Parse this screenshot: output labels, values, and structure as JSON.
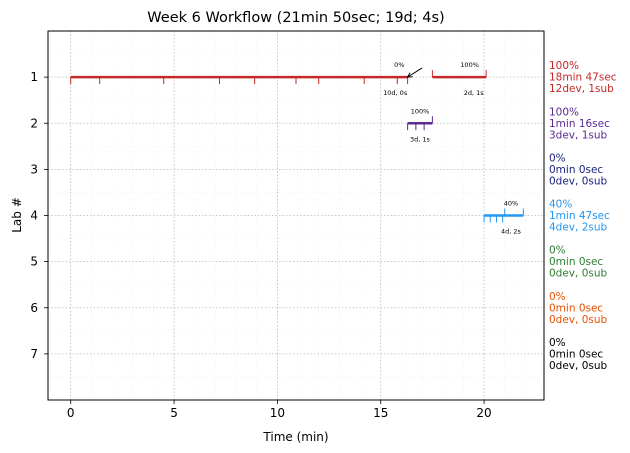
{
  "chart_data": {
    "type": "timeline",
    "title": "Week 6 Workflow (21min 50sec; 19d; 4s)",
    "xlabel": "Time (min)",
    "ylabel": "Lab #",
    "xlim": [
      -1.1,
      22.9
    ],
    "ylim": [
      8,
      0
    ],
    "xticks": [
      0,
      5,
      10,
      15,
      20
    ],
    "yticks": [
      1,
      2,
      3,
      4,
      5,
      6,
      7
    ],
    "grid": true,
    "labs": [
      {
        "lab": 1,
        "color": "#c62828",
        "segments": [
          [
            0,
            16.3
          ],
          [
            17.5,
            20.1
          ]
        ],
        "dev_ticks": [
          0,
          1.4,
          4.5,
          7.2,
          8.9,
          10.9,
          12.0,
          14.2,
          15.8,
          16.3
        ],
        "sub_ticks": [
          17.5,
          20.1
        ],
        "pct_labels": [
          {
            "text": "0%",
            "x": 15.9
          },
          {
            "text": "100%",
            "x": 19.3
          }
        ],
        "count_labels": [
          {
            "text": "10d, 0s",
            "x": 15.7
          },
          {
            "text": "2d, 1s",
            "x": 19.5
          }
        ],
        "side_lines": [
          "100%",
          "18min 47sec",
          "12dev, 1sub"
        ]
      },
      {
        "lab": 2,
        "color": "#5b2a91",
        "segments": [
          [
            16.3,
            17.5
          ]
        ],
        "dev_ticks": [
          16.3,
          16.7,
          17.1
        ],
        "sub_ticks": [
          17.5
        ],
        "pct_labels": [
          {
            "text": "100%",
            "x": 16.9
          }
        ],
        "count_labels": [
          {
            "text": "3d, 1s",
            "x": 16.9
          }
        ],
        "side_lines": [
          "100%",
          "1min 16sec",
          "3dev, 1sub"
        ]
      },
      {
        "lab": 3,
        "color": "#1a237e",
        "segments": [],
        "dev_ticks": [],
        "sub_ticks": [],
        "pct_labels": [],
        "count_labels": [],
        "side_lines": [
          "0%",
          "0min 0sec",
          "0dev, 0sub"
        ]
      },
      {
        "lab": 4,
        "color": "#2196f3",
        "segments": [
          [
            20.0,
            21.9
          ]
        ],
        "dev_ticks": [
          20.0,
          20.3,
          20.6,
          20.9
        ],
        "sub_ticks": [
          21.0,
          21.9
        ],
        "pct_labels": [
          {
            "text": "40%",
            "x": 21.3
          }
        ],
        "count_labels": [
          {
            "text": "4d, 2s",
            "x": 21.3
          }
        ],
        "side_lines": [
          "40%",
          "1min 47sec",
          "4dev, 2sub"
        ]
      },
      {
        "lab": 5,
        "color": "#2e7d32",
        "segments": [],
        "dev_ticks": [],
        "sub_ticks": [],
        "pct_labels": [],
        "count_labels": [],
        "side_lines": [
          "0%",
          "0min 0sec",
          "0dev, 0sub"
        ]
      },
      {
        "lab": 6,
        "color": "#e65100",
        "segments": [],
        "dev_ticks": [],
        "sub_ticks": [],
        "pct_labels": [],
        "count_labels": [],
        "side_lines": [
          "0%",
          "0min 0sec",
          "0dev, 0sub"
        ]
      },
      {
        "lab": 7,
        "color": "#000000",
        "segments": [],
        "dev_ticks": [],
        "sub_ticks": [],
        "pct_labels": [],
        "count_labels": [],
        "side_lines": [
          "0%",
          "0min 0sec",
          "0dev, 0sub"
        ]
      }
    ],
    "annotations": [
      {
        "type": "arrow",
        "from": [
          17.0,
          0.8
        ],
        "to": [
          16.3,
          1.0
        ]
      }
    ]
  }
}
